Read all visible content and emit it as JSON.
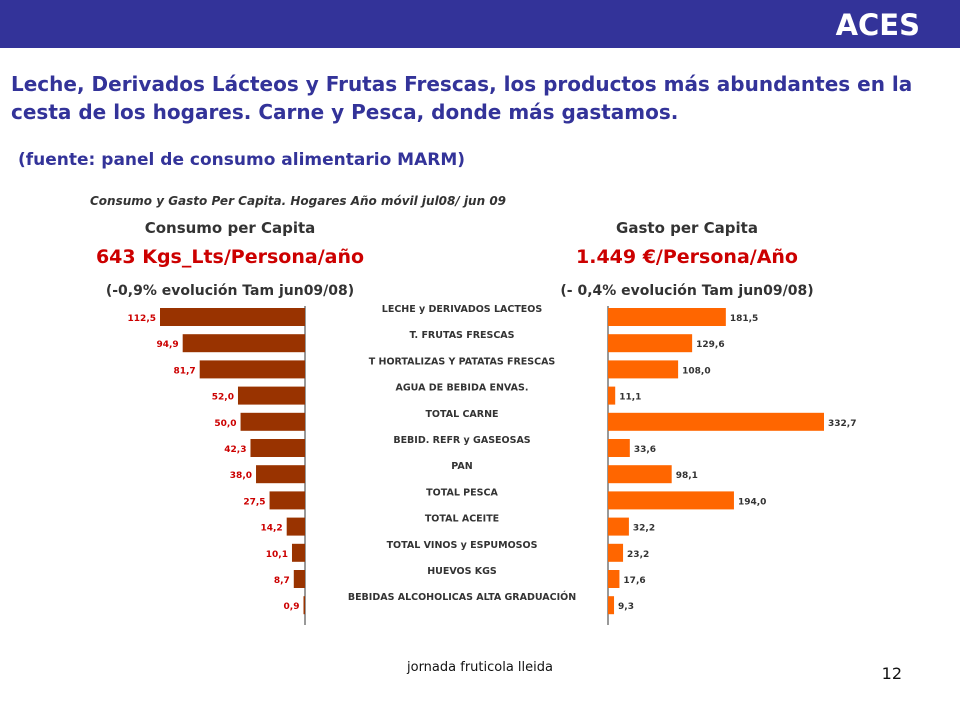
{
  "header": {
    "brand": "ACES"
  },
  "headline": "Leche, Derivados Lácteos y Frutas Frescas, los productos más abundantes en la cesta de los hogares. Carne y Pesca, donde más gastamos.",
  "source": "(fuente: panel de consumo alimentario MARM)",
  "footer": {
    "text": "jornada fruticola lleida",
    "page": "12"
  },
  "colors": {
    "bar_consumo": "#993300",
    "bar_gasto": "#ff6600",
    "headline": "#333399",
    "chart_text": "#333333",
    "topbar": "#333399"
  },
  "chart_data": {
    "type": "bar",
    "title": "Consumo y Gasto Per Capita. Hogares Año móvil jul08/ jun 09",
    "categories": [
      "LECHE y DERIVADOS LACTEOS",
      "T. FRUTAS FRESCAS",
      "T HORTALIZAS Y PATATAS FRESCAS",
      "AGUA DE BEBIDA ENVAS.",
      "TOTAL CARNE",
      "BEBID. REFR y GASEOSAS",
      "PAN",
      "TOTAL PESCA",
      "TOTAL ACEITE",
      "TOTAL VINOS y ESPUMOSOS",
      "HUEVOS KGS",
      "BEBIDAS ALCOHOLICAS ALTA GRADUACIÓN"
    ],
    "series": [
      {
        "name": "Consumo per Capita",
        "headline": "643 Kgs_Lts/Persona/año",
        "evolution": "(-0,9% evolución Tam jun09/08)",
        "values": [
          112.5,
          94.9,
          81.7,
          52.0,
          50.0,
          42.3,
          38.0,
          27.5,
          14.2,
          10.1,
          8.7,
          0.9
        ],
        "labels": [
          "112,5",
          "94,9",
          "81,7",
          "52,0",
          "50,0",
          "42,3",
          "38,0",
          "27,5",
          "14,2",
          "10,1",
          "8,7",
          "0,9"
        ]
      },
      {
        "name": "Gasto per Capita",
        "headline": "1.449 €/Persona/Año",
        "evolution": "(- 0,4% evolución Tam jun09/08)",
        "values": [
          181.5,
          129.6,
          108.0,
          11.1,
          332.7,
          33.6,
          98.1,
          194.0,
          32.2,
          23.2,
          17.6,
          9.3
        ],
        "labels": [
          "181,5",
          "129,6",
          "108,0",
          "11,1",
          "332,7",
          "33,6",
          "98,1",
          "194,0",
          "32,2",
          "23,2",
          "17,6",
          "9,3"
        ]
      }
    ]
  }
}
